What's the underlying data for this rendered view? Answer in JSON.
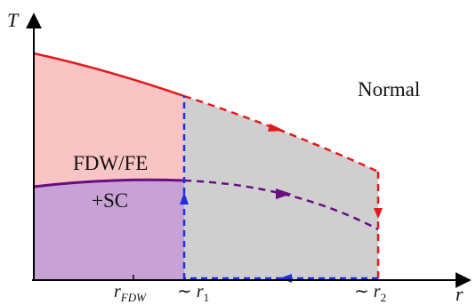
{
  "axes": {
    "y_label": "T",
    "x_label": "r",
    "ticks": [
      {
        "main": "r",
        "sub": "FDW"
      },
      {
        "prefix": "∼ ",
        "main": "r",
        "sub": "1"
      },
      {
        "prefix": "∼ ",
        "main": "r",
        "sub": "2"
      }
    ]
  },
  "regions": {
    "normal_label": "Normal",
    "fdw_label": "FDW/FE",
    "sc_label": "+SC"
  },
  "colors": {
    "normal_line": "#e31a1c",
    "fdw_fill": "#f9c4c4",
    "sc_fill": "#c8a2d6",
    "sc_line": "#6a0d83",
    "grey_fill": "#cfcfcf",
    "blue_path": "#1f2ee0",
    "axis": "#000000"
  }
}
